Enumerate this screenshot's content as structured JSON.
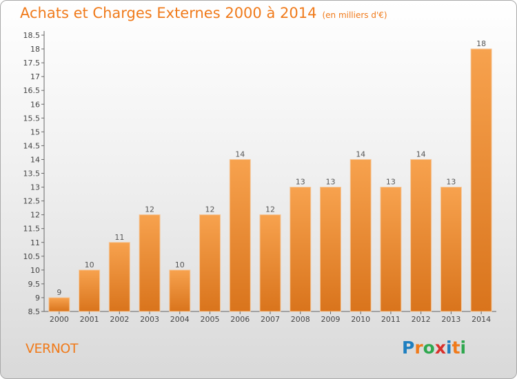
{
  "header": {
    "title": "Achats et Charges Externes 2000 à 2014",
    "subtitle": "(en milliers d'€)"
  },
  "footer": {
    "commune": "VERNOT",
    "logo_text": "Proxiti",
    "logo_colors": [
      "#1e7fc0",
      "#f07a1a",
      "#2fa84f",
      "#d9302b",
      "#1e7fc0",
      "#f07a1a",
      "#2fa84f"
    ]
  },
  "colors": {
    "bar_top": "#f7a24e",
    "bar_bottom": "#d9741c",
    "bar_border": "#f4c79b",
    "accent": "#f07a1a"
  },
  "chart_data": {
    "type": "bar",
    "title": "Achats et Charges Externes 2000 à 2014",
    "subtitle": "(en milliers d'€)",
    "categories": [
      "2000",
      "2001",
      "2002",
      "2003",
      "2004",
      "2005",
      "2006",
      "2007",
      "2008",
      "2009",
      "2010",
      "2011",
      "2012",
      "2013",
      "2014"
    ],
    "values": [
      9,
      10,
      11,
      12,
      10,
      12,
      14,
      12,
      13,
      13,
      14,
      13,
      14,
      13,
      18
    ],
    "data_labels": [
      "9",
      "10",
      "11",
      "12",
      "10",
      "12",
      "14",
      "12",
      "13",
      "13",
      "14",
      "13",
      "14",
      "13",
      "18"
    ],
    "yticks": [
      "8.5",
      "9",
      "9.5",
      "10",
      "10.5",
      "11",
      "11.5",
      "12",
      "12.5",
      "13",
      "13.5",
      "14",
      "14.5",
      "15",
      "15.5",
      "16",
      "16.5",
      "17",
      "17.5",
      "18",
      "18.5"
    ],
    "ylim": [
      8.5,
      18.5
    ],
    "xlabel": "",
    "ylabel": "",
    "grid": false
  }
}
